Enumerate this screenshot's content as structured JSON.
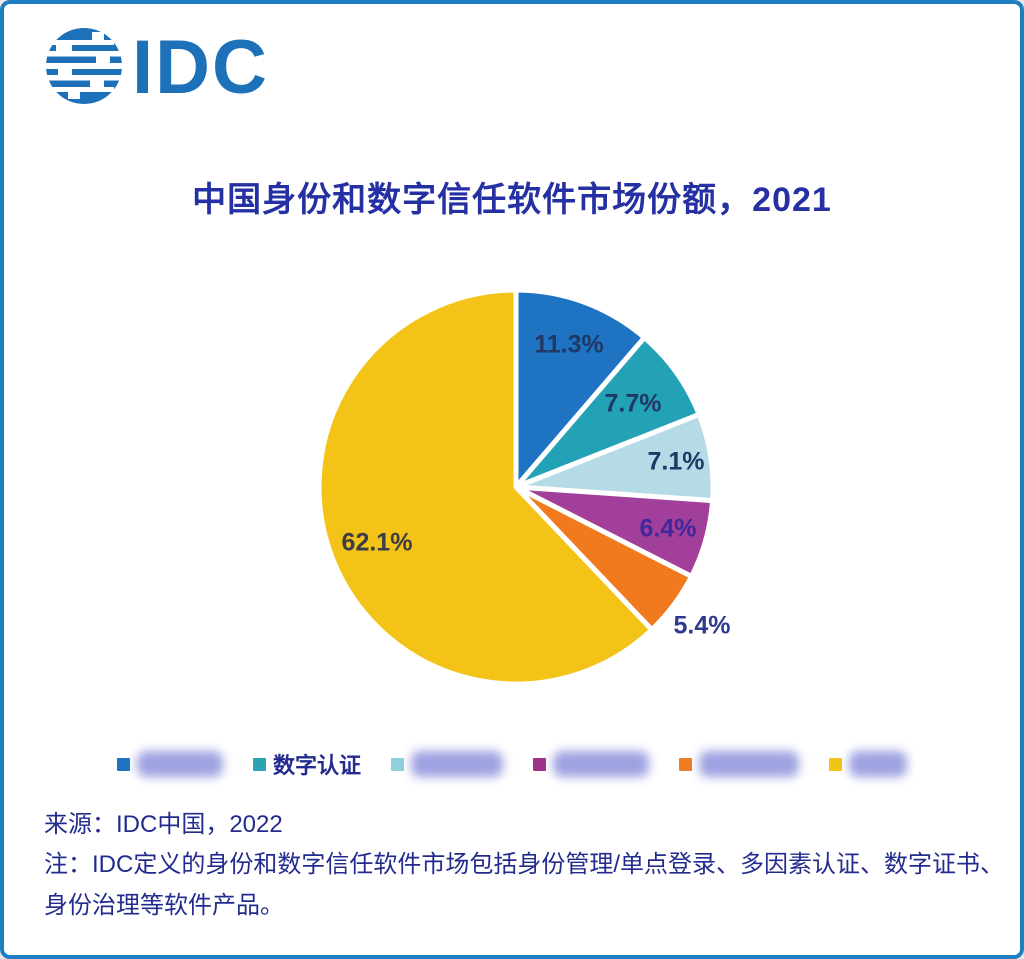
{
  "brand": {
    "logo_text": "IDC",
    "logo_color": "#1d71b8"
  },
  "title": "中国身份和数字信任软件市场份额，2021",
  "chart_data": {
    "type": "pie",
    "title": "中国身份和数字信任软件市场份额，2021",
    "unit": "%",
    "start_angle_deg_from_top": 0,
    "direction": "clockwise",
    "slices": [
      {
        "label": "11.3%",
        "value": 11.3,
        "color": "#1e73c2",
        "label_color": "#1f3864",
        "label_r": 0.77
      },
      {
        "label": "7.7%",
        "value": 7.7,
        "color": "#22a2b4",
        "label_color": "#1f3864",
        "label_r": 0.73
      },
      {
        "label": "7.1%",
        "value": 7.1,
        "color": "#b5dce6",
        "label_color": "#1f3864",
        "label_r": 0.82
      },
      {
        "label": "6.4%",
        "value": 6.4,
        "color": "#a23f9b",
        "label_color": "#40289c",
        "label_r": 0.8
      },
      {
        "label": "5.4%",
        "value": 5.4,
        "color": "#f17a1e",
        "label_color": "#2e3b8f",
        "label_r": 1.18
      },
      {
        "label": "62.1%",
        "value": 62.1,
        "color": "#f3c317",
        "label_color": "#3c3c49",
        "label_r": 0.76
      }
    ],
    "legend_position": "bottom",
    "gap_color": "#ffffff"
  },
  "legend": {
    "items": [
      {
        "label": "",
        "redacted": true,
        "color": "#1e73c2"
      },
      {
        "label": "数字认证",
        "redacted": false,
        "color": "#2aa4b3"
      },
      {
        "label": "",
        "redacted": true,
        "color": "#8fd0dd"
      },
      {
        "label": "",
        "redacted": true,
        "color": "#9c3389"
      },
      {
        "label": "",
        "redacted": true,
        "color": "#ee7d22"
      },
      {
        "label": "",
        "redacted": true,
        "color": "#f2c318"
      }
    ]
  },
  "footer": {
    "source": "来源：IDC中国，2022",
    "note": "注：IDC定义的身份和数字信任软件市场包括身份管理/单点登录、多因素认证、数字证书、身份治理等软件产品。"
  }
}
